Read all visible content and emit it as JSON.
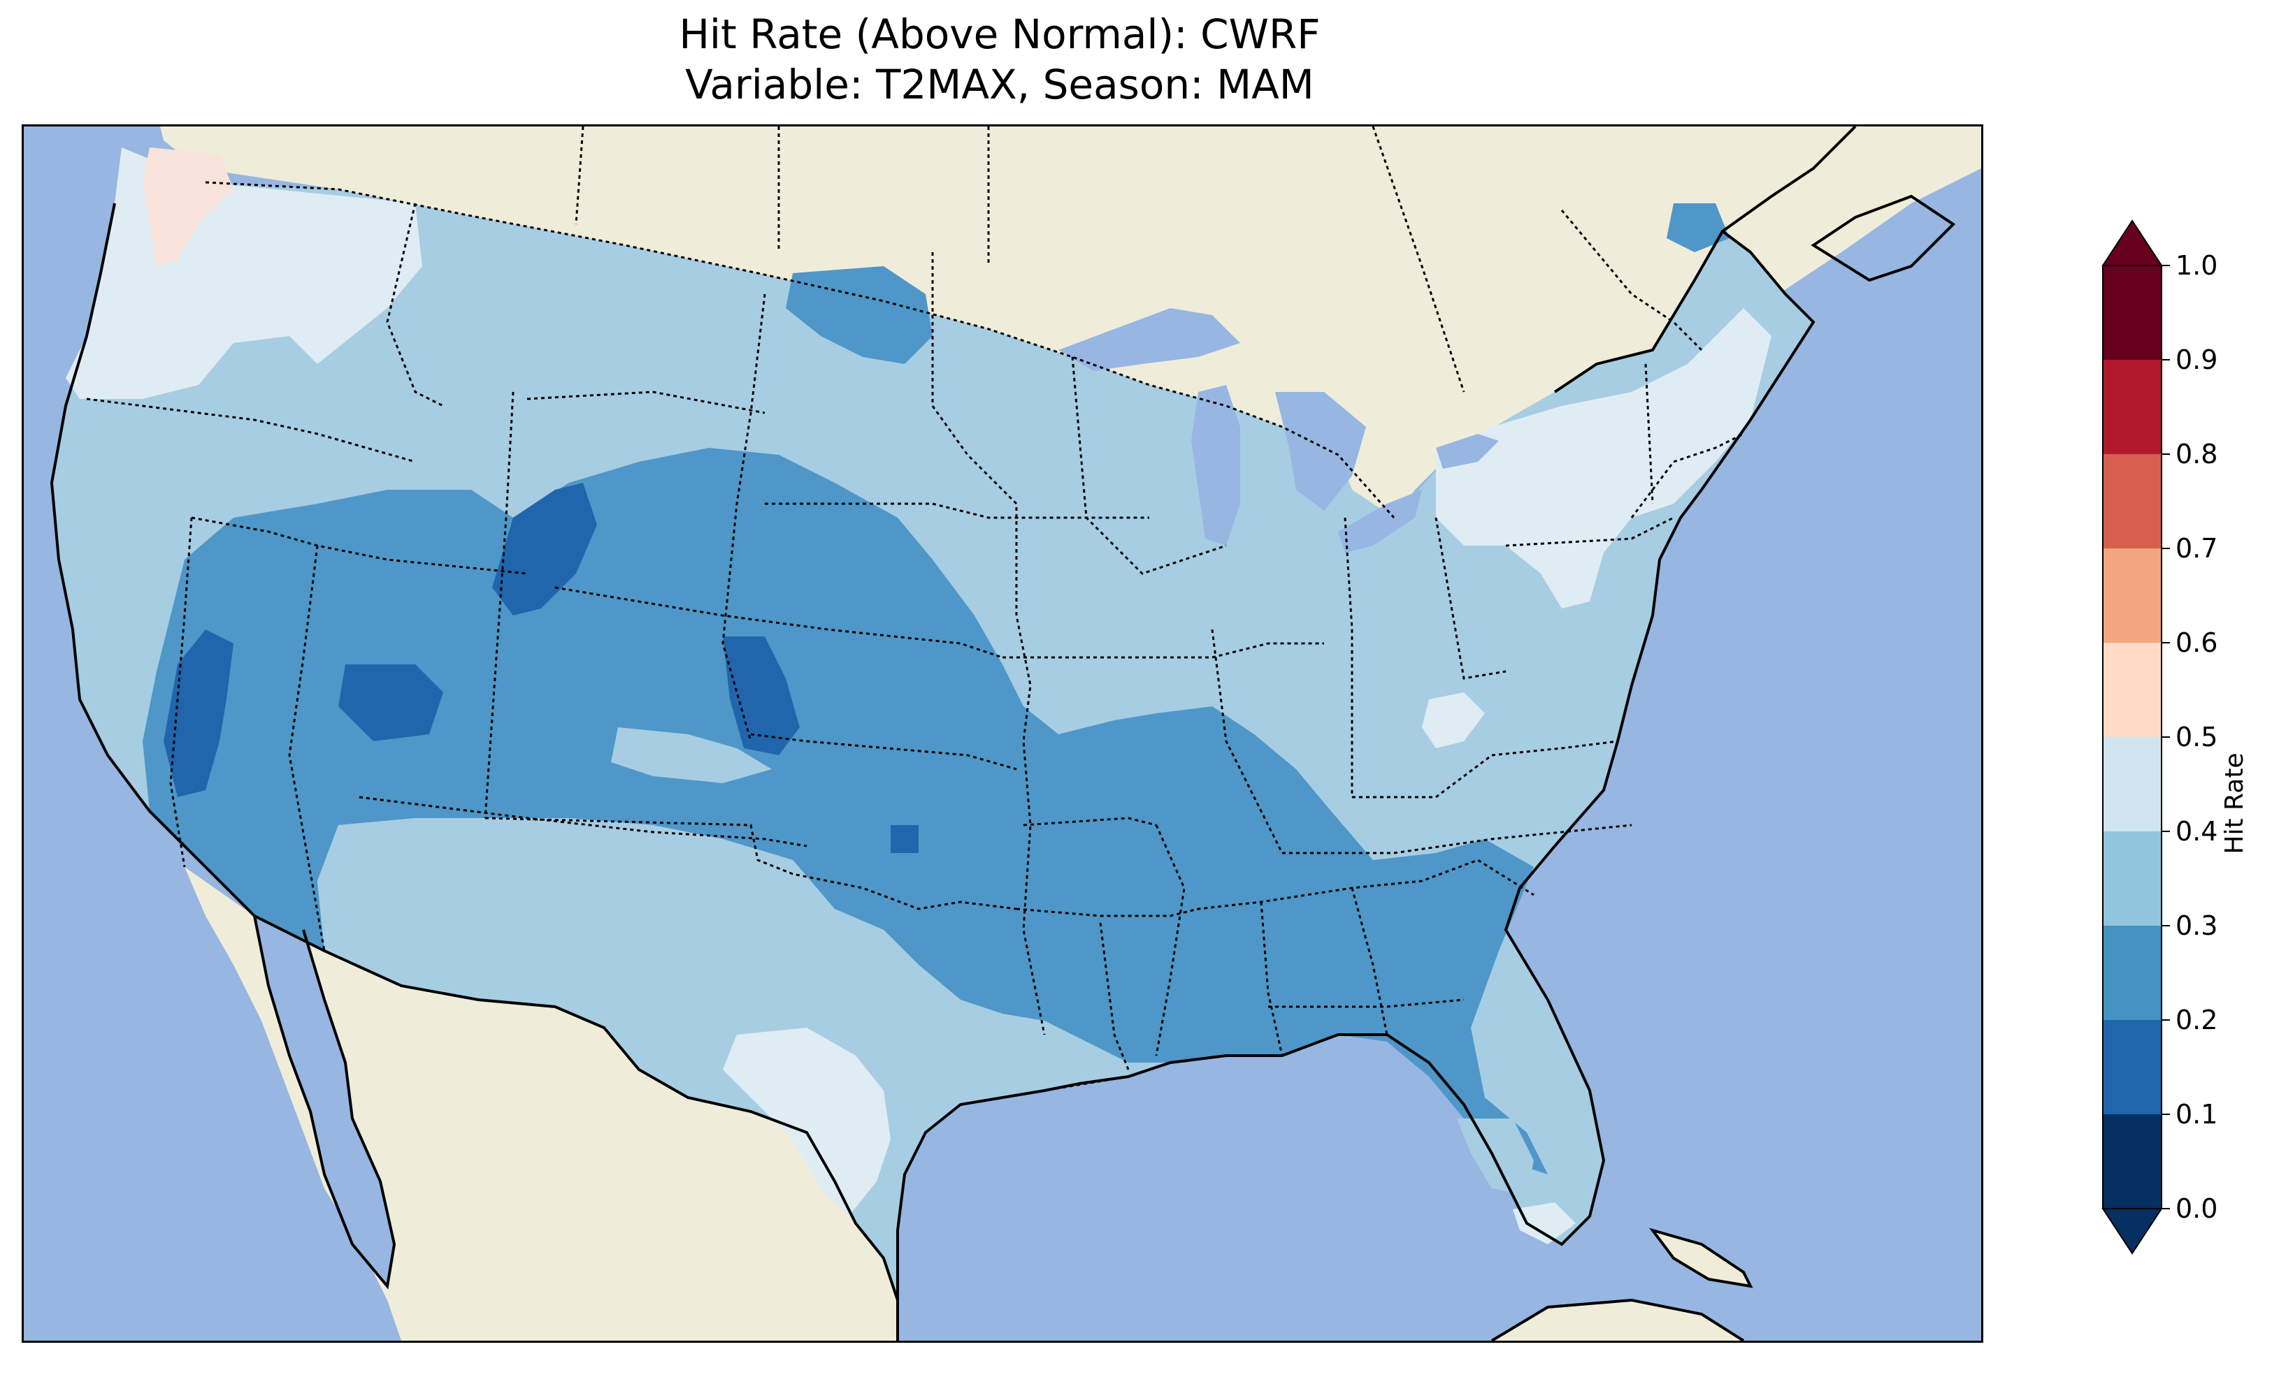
{
  "title": {
    "line1": "Hit Rate (Above Normal): CWRF",
    "line2": "Variable: T2MAX, Season: MAM"
  },
  "map": {
    "ocean_color": "#97b6e1",
    "land_color": "#efedd9",
    "regions": [
      {
        "name": "pacific-northwest-coast",
        "level": "0.5-0.6"
      },
      {
        "name": "washington-oregon",
        "level": "0.4-0.5"
      },
      {
        "name": "northern-rockies-plains",
        "level": "0.3-0.4"
      },
      {
        "name": "southwest-great-basin",
        "level": "0.2-0.3"
      },
      {
        "name": "colorado-wyoming-core",
        "level": "0.1-0.2"
      },
      {
        "name": "central-plains-mississippi",
        "level": "0.2-0.3"
      },
      {
        "name": "southeast",
        "level": "0.2-0.3"
      },
      {
        "name": "west-texas",
        "level": "0.4-0.5"
      },
      {
        "name": "northeast",
        "level": "0.4-0.5"
      },
      {
        "name": "mid-atlantic-great-lakes",
        "level": "0.3-0.4"
      }
    ]
  },
  "colorbar": {
    "label": "Hit Rate",
    "ticks": [
      "0.0",
      "0.1",
      "0.2",
      "0.3",
      "0.4",
      "0.5",
      "0.6",
      "0.7",
      "0.8",
      "0.9",
      "1.0"
    ],
    "colors": [
      "#053061",
      "#2166ac",
      "#4393c3",
      "#92c5de",
      "#d1e5f0",
      "#fddbc7",
      "#f4a582",
      "#d6604d",
      "#b2182b",
      "#67001f"
    ],
    "extend_low_color": "#053061",
    "extend_high_color": "#67001f"
  },
  "legend_colors": {
    "0.1-0.2": "#2166ac",
    "0.2-0.3": "#4f97c8",
    "0.3-0.4": "#a7cde3",
    "0.4-0.5": "#e0ecf4",
    "0.5-0.6": "#f8e3da"
  }
}
